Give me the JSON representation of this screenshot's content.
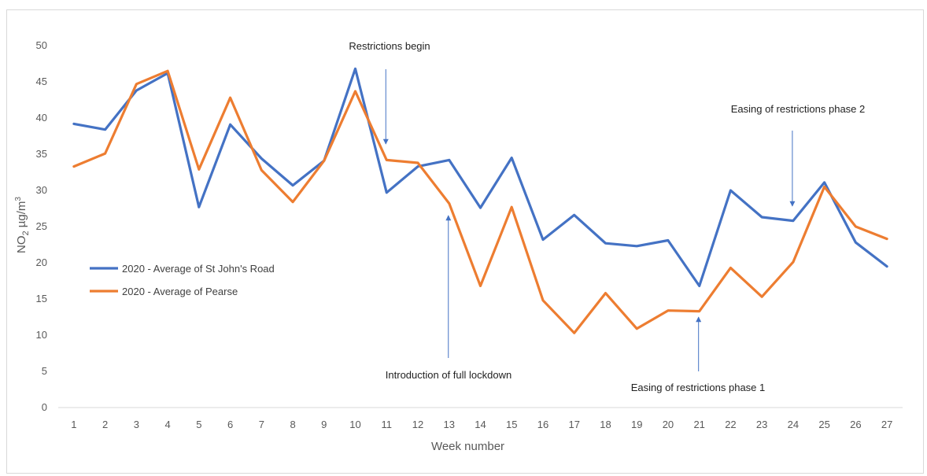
{
  "chart_data": {
    "type": "line",
    "xlabel": "Week number",
    "ylabel": "NO2 µg/m3",
    "ylabel_parts": {
      "main": "NO",
      "sub": "2",
      "unit": " µg/m",
      "sup": "3"
    },
    "ylim": [
      0,
      50
    ],
    "yticks": [
      0,
      5,
      10,
      15,
      20,
      25,
      30,
      35,
      40,
      45,
      50
    ],
    "grid": false,
    "legend_position": "left",
    "x": [
      1,
      2,
      3,
      4,
      5,
      6,
      7,
      8,
      9,
      10,
      11,
      12,
      13,
      14,
      15,
      16,
      17,
      18,
      19,
      20,
      21,
      22,
      23,
      24,
      25,
      26,
      27
    ],
    "series": [
      {
        "name": "2020 - Average of St John's Road",
        "color": "#4472c4",
        "values": [
          39.2,
          38.4,
          43.8,
          46.2,
          27.7,
          39.1,
          34.4,
          30.7,
          34.1,
          46.8,
          29.7,
          33.3,
          34.2,
          27.6,
          34.5,
          23.2,
          26.6,
          22.7,
          22.3,
          23.1,
          16.8,
          30.0,
          26.3,
          25.8,
          31.1,
          22.8,
          19.5
        ]
      },
      {
        "name": "2020 - Average of Pearse",
        "color": "#ed7d31",
        "values": [
          33.3,
          35.1,
          44.7,
          46.5,
          32.9,
          42.8,
          32.8,
          28.4,
          34.1,
          43.7,
          34.2,
          33.8,
          28.2,
          16.8,
          27.7,
          14.8,
          10.3,
          15.8,
          10.9,
          13.4,
          13.3,
          19.3,
          15.3,
          20.1,
          30.5,
          25.0,
          23.3
        ]
      }
    ],
    "annotations": [
      {
        "text": "Restrictions begin",
        "week": 11
      },
      {
        "text": "Introduction of full lockdown",
        "week": 13
      },
      {
        "text": "Easing of restrictions phase 1",
        "week": 21
      },
      {
        "text": "Easing of restrictions phase 2",
        "week": 24
      }
    ]
  }
}
